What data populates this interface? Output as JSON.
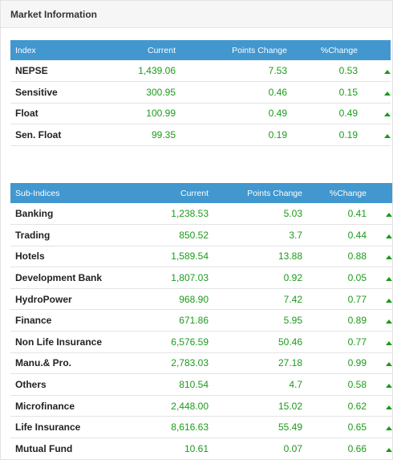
{
  "panel": {
    "title": "Market Information"
  },
  "index_table": {
    "headers": [
      "Index",
      "Current",
      "Points Change",
      "%Change"
    ],
    "rows": [
      {
        "name": "NEPSE",
        "current": "1,439.06",
        "points_change": "7.53",
        "pct_change": "0.53",
        "trend": "up"
      },
      {
        "name": "Sensitive",
        "current": "300.95",
        "points_change": "0.46",
        "pct_change": "0.15",
        "trend": "up"
      },
      {
        "name": "Float",
        "current": "100.99",
        "points_change": "0.49",
        "pct_change": "0.49",
        "trend": "up"
      },
      {
        "name": "Sen. Float",
        "current": "99.35",
        "points_change": "0.19",
        "pct_change": "0.19",
        "trend": "up"
      }
    ]
  },
  "sub_indices_table": {
    "headers": [
      "Sub-Indices",
      "Current",
      "Points Change",
      "%Change"
    ],
    "rows": [
      {
        "name": "Banking",
        "current": "1,238.53",
        "points_change": "5.03",
        "pct_change": "0.41",
        "trend": "up"
      },
      {
        "name": "Trading",
        "current": "850.52",
        "points_change": "3.7",
        "pct_change": "0.44",
        "trend": "up"
      },
      {
        "name": "Hotels",
        "current": "1,589.54",
        "points_change": "13.88",
        "pct_change": "0.88",
        "trend": "up"
      },
      {
        "name": "Development Bank",
        "current": "1,807.03",
        "points_change": "0.92",
        "pct_change": "0.05",
        "trend": "up"
      },
      {
        "name": "HydroPower",
        "current": "968.90",
        "points_change": "7.42",
        "pct_change": "0.77",
        "trend": "up"
      },
      {
        "name": "Finance",
        "current": "671.86",
        "points_change": "5.95",
        "pct_change": "0.89",
        "trend": "up"
      },
      {
        "name": "Non Life Insurance",
        "current": "6,576.59",
        "points_change": "50.46",
        "pct_change": "0.77",
        "trend": "up"
      },
      {
        "name": "Manu.& Pro.",
        "current": "2,783.03",
        "points_change": "27.18",
        "pct_change": "0.99",
        "trend": "up"
      },
      {
        "name": "Others",
        "current": "810.54",
        "points_change": "4.7",
        "pct_change": "0.58",
        "trend": "up"
      },
      {
        "name": "Microfinance",
        "current": "2,448.00",
        "points_change": "15.02",
        "pct_change": "0.62",
        "trend": "up"
      },
      {
        "name": "Life Insurance",
        "current": "8,616.63",
        "points_change": "55.49",
        "pct_change": "0.65",
        "trend": "up"
      },
      {
        "name": "Mutual Fund",
        "current": "10.61",
        "points_change": "0.07",
        "pct_change": "0.66",
        "trend": "up"
      }
    ]
  },
  "icons": {
    "trend_up": "arrow-up-icon"
  },
  "colors": {
    "header_bg": "#4297cf",
    "positive": "#1c9a1c"
  }
}
